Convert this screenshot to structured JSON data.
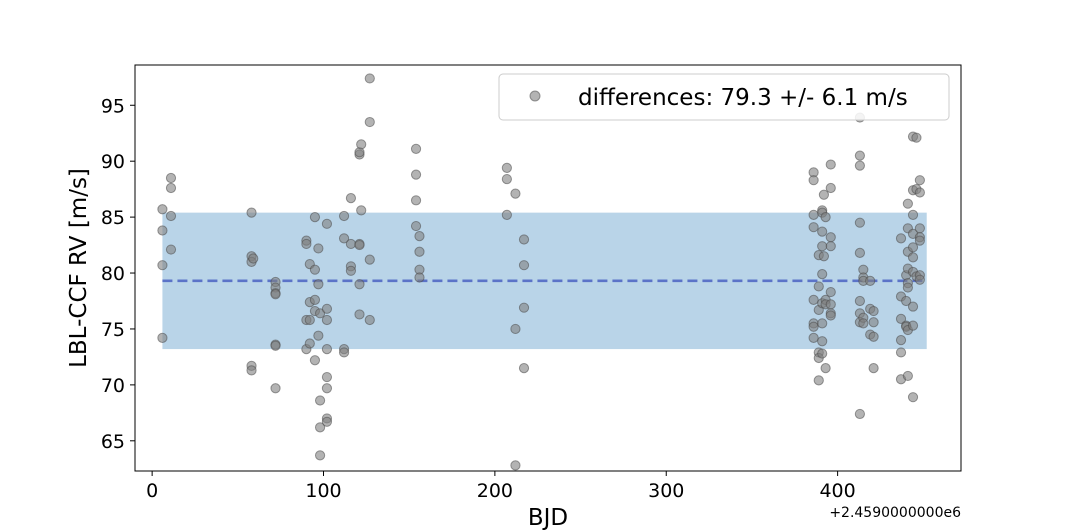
{
  "chart_data": {
    "type": "scatter",
    "xlabel": "BJD",
    "ylabel": "LBL-CCF RV [m/s]",
    "x_offset_label": "+2.4590000000e6",
    "xlim": [
      -10,
      472
    ],
    "ylim": [
      62.3,
      98.6
    ],
    "xticks": [
      0,
      100,
      200,
      300,
      400
    ],
    "yticks": [
      65,
      70,
      75,
      80,
      85,
      90,
      95
    ],
    "mean": 79.3,
    "std": 6.1,
    "band_x": [
      6,
      452
    ],
    "legend_label": "differences: 79.3 +/- 6.1 m/s",
    "legend_position": "top-right",
    "colors": {
      "points": "#808080",
      "band": "#b9d4e8",
      "mean_line": "#5b73c8"
    },
    "points": [
      [
        6,
        85.7
      ],
      [
        6,
        83.8
      ],
      [
        6,
        80.7
      ],
      [
        6,
        74.2
      ],
      [
        11,
        88.5
      ],
      [
        11,
        87.6
      ],
      [
        11,
        85.1
      ],
      [
        11,
        82.1
      ],
      [
        58,
        85.4
      ],
      [
        58,
        81.5
      ],
      [
        58,
        81.0
      ],
      [
        58,
        71.7
      ],
      [
        58,
        71.3
      ],
      [
        59,
        81.3
      ],
      [
        72,
        79.2
      ],
      [
        72,
        78.7
      ],
      [
        72,
        78.2
      ],
      [
        72,
        78.1
      ],
      [
        72,
        73.6
      ],
      [
        72,
        73.5
      ],
      [
        72,
        69.7
      ],
      [
        90,
        82.9
      ],
      [
        90,
        82.6
      ],
      [
        90,
        75.8
      ],
      [
        90,
        73.2
      ],
      [
        92,
        80.8
      ],
      [
        92,
        77.4
      ],
      [
        92,
        75.8
      ],
      [
        92,
        73.7
      ],
      [
        95,
        85.0
      ],
      [
        95,
        80.3
      ],
      [
        95,
        77.6
      ],
      [
        95,
        76.6
      ],
      [
        95,
        72.2
      ],
      [
        97,
        82.2
      ],
      [
        97,
        79.0
      ],
      [
        97,
        74.4
      ],
      [
        98,
        76.4
      ],
      [
        98,
        68.6
      ],
      [
        98,
        66.2
      ],
      [
        98,
        63.7
      ],
      [
        102,
        84.4
      ],
      [
        102,
        76.8
      ],
      [
        102,
        75.8
      ],
      [
        102,
        73.2
      ],
      [
        102,
        70.7
      ],
      [
        102,
        69.7
      ],
      [
        102,
        67.0
      ],
      [
        102,
        66.7
      ],
      [
        112,
        85.1
      ],
      [
        112,
        83.1
      ],
      [
        112,
        73.2
      ],
      [
        112,
        72.9
      ],
      [
        116,
        86.7
      ],
      [
        116,
        82.6
      ],
      [
        116,
        80.6
      ],
      [
        116,
        80.2
      ],
      [
        121,
        90.6
      ],
      [
        121,
        90.8
      ],
      [
        121,
        82.6
      ],
      [
        121,
        82.5
      ],
      [
        121,
        79.0
      ],
      [
        121,
        76.3
      ],
      [
        122,
        91.5
      ],
      [
        122,
        85.6
      ],
      [
        127,
        97.4
      ],
      [
        127,
        93.5
      ],
      [
        127,
        81.2
      ],
      [
        127,
        75.8
      ],
      [
        154,
        91.1
      ],
      [
        154,
        88.8
      ],
      [
        154,
        86.5
      ],
      [
        154,
        84.2
      ],
      [
        156,
        83.3
      ],
      [
        156,
        81.9
      ],
      [
        156,
        80.3
      ],
      [
        156,
        79.6
      ],
      [
        207,
        89.4
      ],
      [
        207,
        88.4
      ],
      [
        207,
        85.2
      ],
      [
        212,
        87.1
      ],
      [
        212,
        75.0
      ],
      [
        212,
        62.8
      ],
      [
        217,
        83.0
      ],
      [
        217,
        80.7
      ],
      [
        217,
        76.9
      ],
      [
        217,
        71.5
      ],
      [
        386,
        89.0
      ],
      [
        386,
        88.3
      ],
      [
        386,
        85.2
      ],
      [
        386,
        84.1
      ],
      [
        386,
        77.6
      ],
      [
        386,
        75.5
      ],
      [
        386,
        75.2
      ],
      [
        386,
        74.2
      ],
      [
        389,
        81.6
      ],
      [
        389,
        78.8
      ],
      [
        389,
        76.7
      ],
      [
        389,
        72.9
      ],
      [
        389,
        72.4
      ],
      [
        389,
        70.4
      ],
      [
        391,
        85.6
      ],
      [
        391,
        85.4
      ],
      [
        391,
        83.7
      ],
      [
        391,
        82.4
      ],
      [
        391,
        79.9
      ],
      [
        391,
        77.3
      ],
      [
        391,
        75.5
      ],
      [
        391,
        73.9
      ],
      [
        391,
        72.8
      ],
      [
        392,
        87.0
      ],
      [
        392,
        81.5
      ],
      [
        393,
        85.0
      ],
      [
        393,
        77.6
      ],
      [
        393,
        77.2
      ],
      [
        393,
        71.5
      ],
      [
        396,
        89.7
      ],
      [
        396,
        87.6
      ],
      [
        396,
        83.2
      ],
      [
        396,
        82.4
      ],
      [
        396,
        78.3
      ],
      [
        396,
        77.2
      ],
      [
        396,
        76.4
      ],
      [
        396,
        76.2
      ],
      [
        413,
        93.9
      ],
      [
        413,
        90.5
      ],
      [
        413,
        89.6
      ],
      [
        413,
        84.5
      ],
      [
        413,
        81.8
      ],
      [
        413,
        77.5
      ],
      [
        413,
        76.4
      ],
      [
        413,
        75.6
      ],
      [
        413,
        67.4
      ],
      [
        415,
        80.3
      ],
      [
        415,
        79.6
      ],
      [
        415,
        79.3
      ],
      [
        415,
        76.0
      ],
      [
        415,
        75.5
      ],
      [
        419,
        79.3
      ],
      [
        419,
        76.8
      ],
      [
        419,
        74.5
      ],
      [
        421,
        76.6
      ],
      [
        421,
        75.6
      ],
      [
        421,
        74.3
      ],
      [
        421,
        71.5
      ],
      [
        437,
        83.1
      ],
      [
        437,
        77.9
      ],
      [
        437,
        75.9
      ],
      [
        437,
        74.0
      ],
      [
        437,
        72.9
      ],
      [
        437,
        70.5
      ],
      [
        440,
        79.8
      ],
      [
        440,
        77.5
      ],
      [
        440,
        75.3
      ],
      [
        440,
        75.2
      ],
      [
        441,
        86.2
      ],
      [
        441,
        84.0
      ],
      [
        441,
        81.9
      ],
      [
        441,
        80.4
      ],
      [
        441,
        79.1
      ],
      [
        441,
        78.7
      ],
      [
        441,
        74.9
      ],
      [
        441,
        70.8
      ],
      [
        444,
        92.2
      ],
      [
        444,
        87.4
      ],
      [
        444,
        85.2
      ],
      [
        444,
        83.5
      ],
      [
        444,
        82.3
      ],
      [
        444,
        81.4
      ],
      [
        444,
        80.1
      ],
      [
        444,
        77.0
      ],
      [
        444,
        75.3
      ],
      [
        444,
        68.9
      ],
      [
        446,
        92.1
      ],
      [
        446,
        87.5
      ],
      [
        446,
        79.7
      ],
      [
        448,
        88.3
      ],
      [
        448,
        87.2
      ],
      [
        448,
        84.0
      ],
      [
        448,
        83.2
      ],
      [
        448,
        82.9
      ],
      [
        448,
        79.8
      ],
      [
        448,
        79.4
      ]
    ]
  }
}
